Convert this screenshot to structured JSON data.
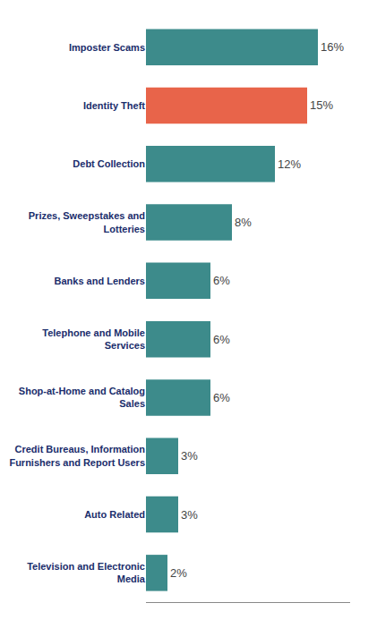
{
  "chart_data": {
    "type": "bar",
    "orientation": "horizontal",
    "categories": [
      "Television and Electronic\nMedia",
      "Auto Related",
      "Credit Bureaus, Information\nFurnishers and Report Users",
      "Shop-at-Home and Catalog\nSales",
      "Telephone and Mobile\nServices",
      "Banks and Lenders",
      "Prizes, Sweepstakes and\nLotteries",
      "Debt Collection",
      "Identity Theft",
      "Imposter Scams"
    ],
    "values": [
      2,
      3,
      3,
      6,
      6,
      6,
      8,
      12,
      15,
      16
    ],
    "value_labels": [
      "2%",
      "3%",
      "3%",
      "6%",
      "6%",
      "6%",
      "8%",
      "12%",
      "15%",
      "16%"
    ],
    "colors": [
      "#3d8b8b",
      "#3d8b8b",
      "#3d8b8b",
      "#3d8b8b",
      "#3d8b8b",
      "#3d8b8b",
      "#3d8b8b",
      "#3d8b8b",
      "#e8644a",
      "#3d8b8b"
    ],
    "xlim": [
      0,
      19
    ],
    "data_labels": true,
    "tick_labels": "y",
    "grid": false
  }
}
